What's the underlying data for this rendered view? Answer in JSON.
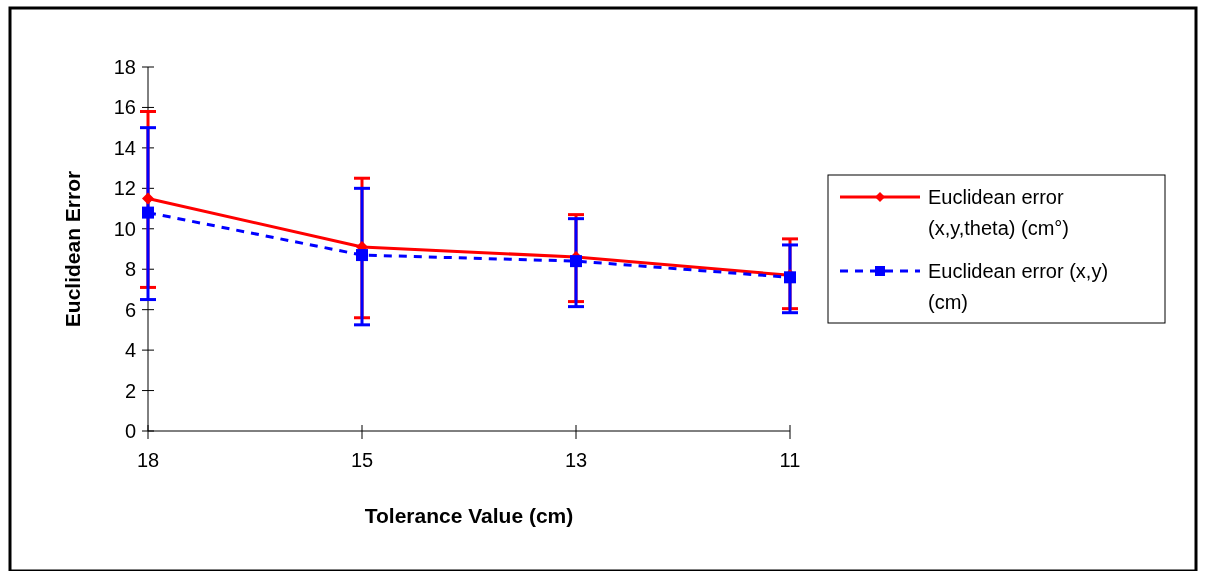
{
  "chart_data": {
    "type": "line",
    "xlabel": "Tolerance Value (cm)",
    "ylabel": "Euclidean Error",
    "categories": [
      "18",
      "15",
      "13",
      "11"
    ],
    "ylim": [
      0,
      18
    ],
    "yticks": [
      0,
      2,
      4,
      6,
      8,
      10,
      12,
      14,
      16,
      18
    ],
    "grid": false,
    "legend": "right",
    "series": [
      {
        "name": "Euclidean error (x,y,theta) (cm°)",
        "color": "#ff0000",
        "marker": "diamond",
        "line_style": "solid",
        "values": [
          11.5,
          9.1,
          8.6,
          7.7
        ],
        "errors": [
          [
            7.1,
            15.8
          ],
          [
            5.6,
            12.5
          ],
          [
            6.4,
            10.7
          ],
          [
            6.05,
            9.5
          ]
        ]
      },
      {
        "name": "Euclidean error (x,y) (cm)",
        "color": "#0000ff",
        "marker": "square",
        "line_style": "dashed",
        "values": [
          10.8,
          8.7,
          8.4,
          7.6
        ],
        "errors": [
          [
            6.5,
            15.0
          ],
          [
            5.25,
            12.0
          ],
          [
            6.15,
            10.5
          ],
          [
            5.85,
            9.2
          ]
        ]
      }
    ]
  }
}
